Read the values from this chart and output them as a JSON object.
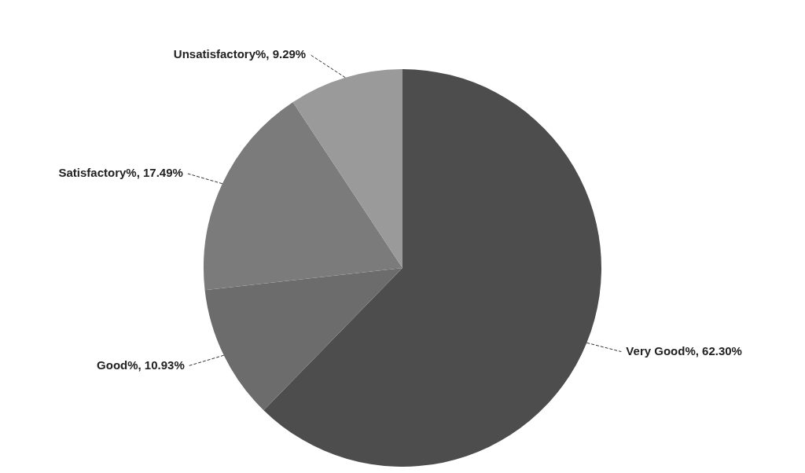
{
  "chart_data": {
    "type": "pie",
    "categories": [
      "Very Good%",
      "Good%",
      "Satisfactory%",
      "Unsatisfactory%"
    ],
    "values": [
      62.3,
      10.93,
      17.49,
      9.29
    ],
    "value_labels": [
      "62.30%",
      "10.93%",
      "17.49%",
      "9.29%"
    ],
    "colors": [
      "#4d4d4d",
      "#6c6c6c",
      "#7b7b7b",
      "#9a9a9a"
    ],
    "legend": false
  }
}
